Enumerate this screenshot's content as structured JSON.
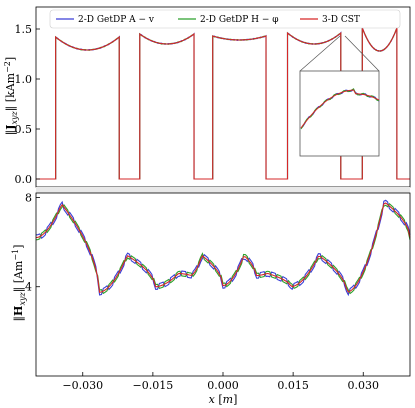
{
  "chart_data": [
    {
      "type": "line",
      "ylabel": "‖J_xyz‖ [kAm⁻²]",
      "yticks": [
        {
          "value": 0.0,
          "label": "0.0"
        },
        {
          "value": 0.5,
          "label": "0.5"
        },
        {
          "value": 1.0,
          "label": "1.0"
        },
        {
          "value": 1.5,
          "label": "1.5"
        }
      ],
      "ylim": [
        -0.08,
        1.72
      ],
      "xlim": [
        -0.04,
        0.04
      ],
      "grid": false,
      "legend": {
        "location": "top",
        "entries": [
          {
            "label": "2-D GetDP A − v",
            "color": "#3a3fd6"
          },
          {
            "label": "2-D GetDP H − φ",
            "color": "#2ca02c"
          },
          {
            "label": "3-D CST",
            "color": "#d62728"
          }
        ]
      },
      "pulses": [
        {
          "x0": -0.0358,
          "x1": -0.0222,
          "edge": 1.42,
          "mid": 1.29
        },
        {
          "x0": -0.0178,
          "x1": -0.0062,
          "edge": 1.45,
          "mid": 1.35
        },
        {
          "x0": -0.0022,
          "x1": 0.0092,
          "edge": 1.43,
          "mid": 1.39
        },
        {
          "x0": 0.0138,
          "x1": 0.0252,
          "edge": 1.46,
          "mid": 1.35
        },
        {
          "x0": 0.0298,
          "x1": 0.0372,
          "edge": 1.51,
          "mid": 1.28
        }
      ],
      "baseline": 0.0,
      "inset": "zoom of a pulse top",
      "series": [
        {
          "name": "2-D GetDP A − v",
          "color": "#3a3fd6"
        },
        {
          "name": "2-D GetDP H − φ",
          "color": "#2ca02c"
        },
        {
          "name": "3-D CST",
          "color": "#d62728"
        }
      ]
    },
    {
      "type": "line",
      "xlabel": "x [m]",
      "ylabel": "‖H_xyz‖ [Am⁻¹]",
      "xticks": [
        {
          "value": -0.03,
          "label": "−0.030"
        },
        {
          "value": -0.015,
          "label": "−0.015"
        },
        {
          "value": 0.0,
          "label": "0.000"
        },
        {
          "value": 0.015,
          "label": "0.015"
        },
        {
          "value": 0.03,
          "label": "0.030"
        }
      ],
      "yticks": [
        {
          "value": 4,
          "label": "4"
        },
        {
          "value": 8,
          "label": "8"
        }
      ],
      "xlim": [
        -0.04,
        0.04
      ],
      "ylim": [
        0.0,
        8.2
      ],
      "grid": false,
      "peaks": [
        {
          "x": -0.0345,
          "y": 7.7
        },
        {
          "x": -0.0205,
          "y": 5.4
        },
        {
          "x": -0.0095,
          "y": 4.6
        },
        {
          "x": -0.0045,
          "y": 5.4
        },
        {
          "x": 0.0045,
          "y": 5.4
        },
        {
          "x": 0.0095,
          "y": 4.6
        },
        {
          "x": 0.0205,
          "y": 5.4
        },
        {
          "x": 0.0345,
          "y": 7.8
        }
      ],
      "troughs": [
        {
          "x": -0.0265,
          "y": 3.75
        },
        {
          "x": -0.0145,
          "y": 4.0
        },
        {
          "x": -0.007,
          "y": 4.5
        },
        {
          "x": 0.0,
          "y": 4.05
        },
        {
          "x": 0.007,
          "y": 4.5
        },
        {
          "x": 0.0145,
          "y": 4.0
        },
        {
          "x": 0.0265,
          "y": 3.75
        }
      ],
      "ends": {
        "left": 6.2,
        "right": 6.2
      },
      "series": [
        {
          "name": "2-D GetDP A − v",
          "color": "#3a3fd6"
        },
        {
          "name": "2-D GetDP H − φ",
          "color": "#2ca02c"
        },
        {
          "name": "3-D CST",
          "color": "#d62728"
        }
      ]
    }
  ]
}
